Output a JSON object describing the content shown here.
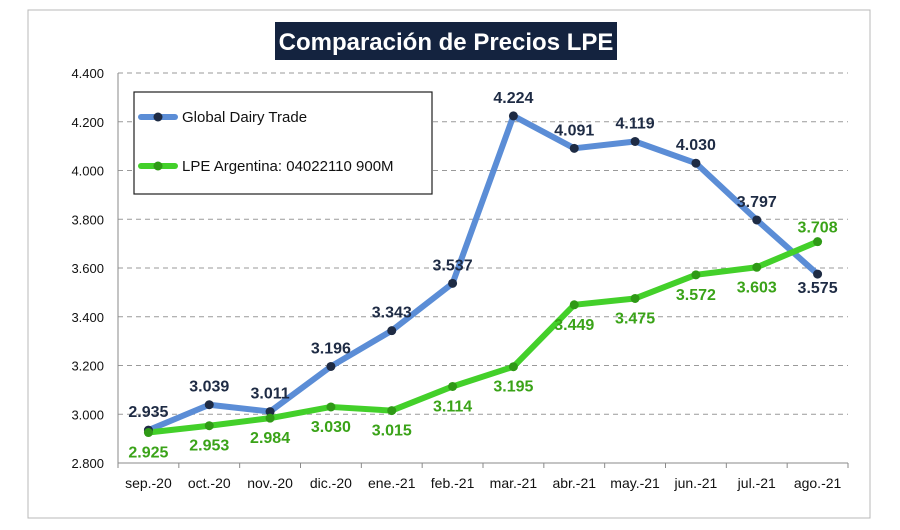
{
  "chart_data": {
    "type": "line",
    "title": "Comparación de Precios LPE",
    "categories": [
      "sep.-20",
      "oct.-20",
      "nov.-20",
      "dic.-20",
      "ene.-21",
      "feb.-21",
      "mar.-21",
      "abr.-21",
      "may.-21",
      "jun.-21",
      "jul.-21",
      "ago.-21"
    ],
    "series": [
      {
        "name": "Global Dairy Trade",
        "color": "#5b8dd6",
        "marker_color": "#1e2b44",
        "values": [
          2935,
          3039,
          3011,
          3196,
          3343,
          3537,
          4224,
          4091,
          4119,
          4030,
          3797,
          3575
        ],
        "labels": [
          "2.935",
          "3.039",
          "3.011",
          "3.196",
          "3.343",
          "3.537",
          "4.224",
          "4.091",
          "4.119",
          "4.030",
          "3.797",
          "3.575"
        ]
      },
      {
        "name": "LPE Argentina: 04022110 900M",
        "color": "#43d02a",
        "marker_color": "#2f9a16",
        "values": [
          2925,
          2953,
          2984,
          3030,
          3015,
          3114,
          3195,
          3449,
          3475,
          3572,
          3603,
          3708
        ],
        "labels": [
          "2.925",
          "2.953",
          "2.984",
          "3.030",
          "3.015",
          "3.114",
          "3.195",
          "3.449",
          "3.475",
          "3.572",
          "3.603",
          "3.708"
        ]
      }
    ],
    "ylim": [
      2800,
      4400
    ],
    "yticks": [
      2800,
      3000,
      3200,
      3400,
      3600,
      3800,
      4000,
      4200,
      4400
    ],
    "ytick_labels": [
      "2.800",
      "3.000",
      "3.200",
      "3.400",
      "3.600",
      "3.800",
      "4.000",
      "4.200",
      "4.400"
    ],
    "grid": true,
    "legend_position": "top-left",
    "xlabel": "",
    "ylabel": ""
  }
}
